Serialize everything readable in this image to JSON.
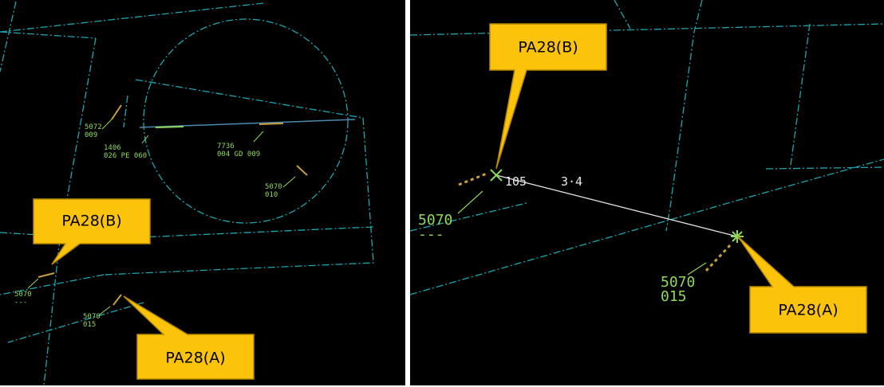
{
  "left_panel": {
    "tracks": [
      {
        "code": "5072",
        "level": "009"
      },
      {
        "code": "1406",
        "level": "026 PE 060"
      },
      {
        "code": "7736",
        "level": "004 GD 009"
      },
      {
        "code": "5070",
        "level": "010"
      },
      {
        "code": "5070",
        "level": "---"
      },
      {
        "code": "5070",
        "level": "015"
      }
    ],
    "callouts": {
      "b": "PA28(B)",
      "a": "PA28(A)"
    }
  },
  "right_panel": {
    "range_bearing": {
      "bearing": "105",
      "distance": "3·4"
    },
    "tracks": [
      {
        "code": "5070",
        "level": "---"
      },
      {
        "code": "5070",
        "level": "015"
      }
    ],
    "callouts": {
      "b": "PA28(B)",
      "a": "PA28(A)"
    }
  }
}
